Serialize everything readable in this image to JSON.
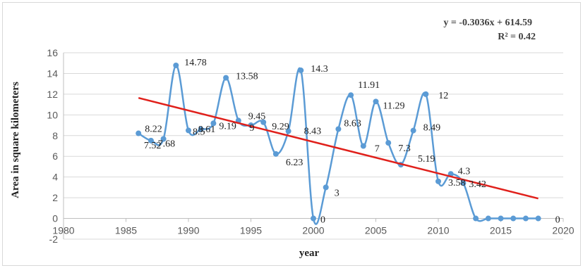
{
  "chart_data": {
    "type": "scatter",
    "xlabel": "year",
    "ylabel": "Area in square  kilometers",
    "xlim": [
      1980,
      2020
    ],
    "ylim": [
      -2,
      16
    ],
    "x_ticks": [
      "1980",
      "1985",
      "1990",
      "1995",
      "2000",
      "2005",
      "2010",
      "2015",
      "2020"
    ],
    "y_ticks": [
      "-2",
      "0",
      "2",
      "4",
      "6",
      "8",
      "10",
      "12",
      "14",
      "16"
    ],
    "grid": "horizontal",
    "series": [
      {
        "style": "smoothed line with markers",
        "color": "#5b9bd5",
        "points": [
          {
            "x": 1986,
            "y": 8.22,
            "label": "8.22"
          },
          {
            "x": 1987,
            "y": 7.52,
            "label": "7.52"
          },
          {
            "x": 1988,
            "y": 7.68,
            "label": "7.68"
          },
          {
            "x": 1989,
            "y": 14.78,
            "label": "14.78"
          },
          {
            "x": 1990,
            "y": 8.5,
            "label": "8.5"
          },
          {
            "x": 1991,
            "y": 8.61,
            "label": "8.61"
          },
          {
            "x": 1992,
            "y": 9.19,
            "label": "9.19"
          },
          {
            "x": 1993,
            "y": 13.58,
            "label": "13.58"
          },
          {
            "x": 1994,
            "y": 9.45,
            "label": "9.45"
          },
          {
            "x": 1995,
            "y": 9,
            "label": "9"
          },
          {
            "x": 1996,
            "y": 9.29,
            "label": "9.29"
          },
          {
            "x": 1997,
            "y": 6.23,
            "label": "6.23"
          },
          {
            "x": 1998,
            "y": 8.43,
            "label": "8.43"
          },
          {
            "x": 1999,
            "y": 14.3,
            "label": "14.3"
          },
          {
            "x": 2000,
            "y": 0,
            "label": "0"
          },
          {
            "x": 2001,
            "y": 3,
            "label": "3"
          },
          {
            "x": 2002,
            "y": 8.63,
            "label": "8.63"
          },
          {
            "x": 2003,
            "y": 11.91,
            "label": "11.91"
          },
          {
            "x": 2004,
            "y": 7,
            "label": "7"
          },
          {
            "x": 2005,
            "y": 11.29,
            "label": "11.29"
          },
          {
            "x": 2006,
            "y": 7.3,
            "label": "7.3"
          },
          {
            "x": 2007,
            "y": 5.19,
            "label": "5.19"
          },
          {
            "x": 2008,
            "y": 8.49,
            "label": "8.49"
          },
          {
            "x": 2009,
            "y": 12,
            "label": "12"
          },
          {
            "x": 2010,
            "y": 3.58,
            "label": "3.58"
          },
          {
            "x": 2011,
            "y": 4.3,
            "label": "4.3"
          },
          {
            "x": 2012,
            "y": 3.42,
            "label": "3.42"
          },
          {
            "x": 2013,
            "y": 0,
            "label": ""
          },
          {
            "x": 2014,
            "y": 0,
            "label": ""
          },
          {
            "x": 2015,
            "y": 0,
            "label": ""
          },
          {
            "x": 2016,
            "y": 0,
            "label": ""
          },
          {
            "x": 2017,
            "y": 0,
            "label": ""
          },
          {
            "x": 2018,
            "y": 0,
            "label": "0"
          }
        ]
      }
    ],
    "trendline": {
      "type": "linear",
      "slope": -0.3036,
      "intercept": 614.59,
      "color": "#e0201b",
      "equation": "y = -0.3036x + 614.59",
      "r_squared": "R² = 0.42"
    }
  }
}
